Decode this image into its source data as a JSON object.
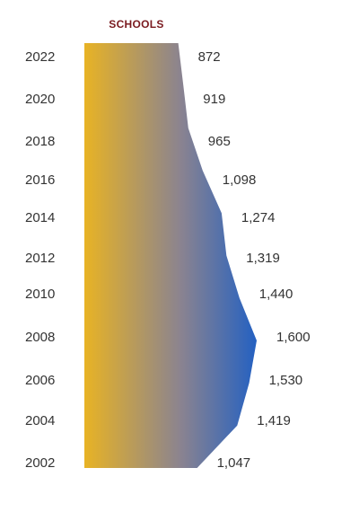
{
  "chart_data": {
    "type": "area",
    "orientation": "horizontal",
    "title": "SCHOOLS",
    "categories": [
      "2022",
      "2020",
      "2018",
      "2016",
      "2014",
      "2012",
      "2010",
      "2008",
      "2006",
      "2004",
      "2002"
    ],
    "values": [
      872,
      919,
      965,
      1098,
      1274,
      1319,
      1440,
      1600,
      1530,
      1419,
      1047
    ],
    "value_labels": [
      "872",
      "919",
      "965",
      "1,098",
      "1,274",
      "1,319",
      "1,440",
      "1,600",
      "1,530",
      "1,419",
      "1,047"
    ],
    "grid": false,
    "legend": "none",
    "colors": {
      "title": "#7a1a1f",
      "gradient_start": "#e8b325",
      "gradient_mid": "#8a8390",
      "gradient_end": "#1f5fc4",
      "text": "#333333"
    }
  }
}
